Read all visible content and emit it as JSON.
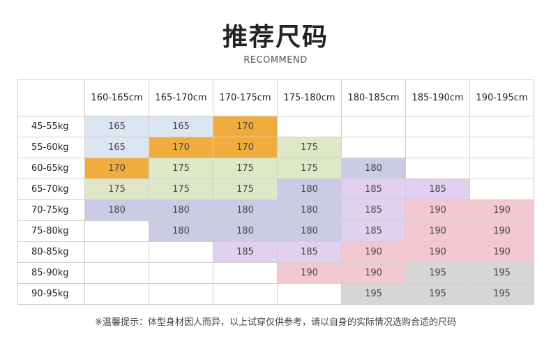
{
  "title": "推荐尺码",
  "subtitle": "RECOMMEND",
  "table": {
    "corner": "",
    "heights": [
      "160-165cm",
      "165-170cm",
      "170-175cm",
      "175-180cm",
      "180-185cm",
      "185-190cm",
      "190-195cm"
    ],
    "rows": [
      {
        "weight": "45-55kg",
        "cells": [
          "165",
          "165",
          "170",
          "",
          "",
          "",
          ""
        ]
      },
      {
        "weight": "55-60kg",
        "cells": [
          "165",
          "170",
          "170",
          "175",
          "",
          "",
          ""
        ]
      },
      {
        "weight": "60-65kg",
        "cells": [
          "170",
          "175",
          "175",
          "175",
          "180",
          "",
          ""
        ]
      },
      {
        "weight": "65-70kg",
        "cells": [
          "175",
          "175",
          "175",
          "180",
          "185",
          "185",
          ""
        ]
      },
      {
        "weight": "70-75kg",
        "cells": [
          "180",
          "180",
          "180",
          "180",
          "185",
          "190",
          "190"
        ]
      },
      {
        "weight": "75-80kg",
        "cells": [
          "",
          "180",
          "180",
          "180",
          "185",
          "190",
          "190"
        ]
      },
      {
        "weight": "80-85kg",
        "cells": [
          "",
          "",
          "185",
          "185",
          "190",
          "190",
          "190"
        ]
      },
      {
        "weight": "85-90kg",
        "cells": [
          "",
          "",
          "",
          "190",
          "190",
          "195",
          "195"
        ]
      },
      {
        "weight": "90-95kg",
        "cells": [
          "",
          "",
          "",
          "",
          "195",
          "195",
          "195"
        ]
      }
    ]
  },
  "size_colors": {
    "165": "#dce6f0",
    "170": "#f0ad3e",
    "175": "#dfe8c6",
    "180": "#cbcbe6",
    "185": "#e1d0ef",
    "190": "#f4c8d0",
    "195": "#d6d6d6"
  },
  "note": "※温馨提示：体型身材因人而异，以上试穿仅供参考，请以自身的实际情况选购合适的尺码"
}
